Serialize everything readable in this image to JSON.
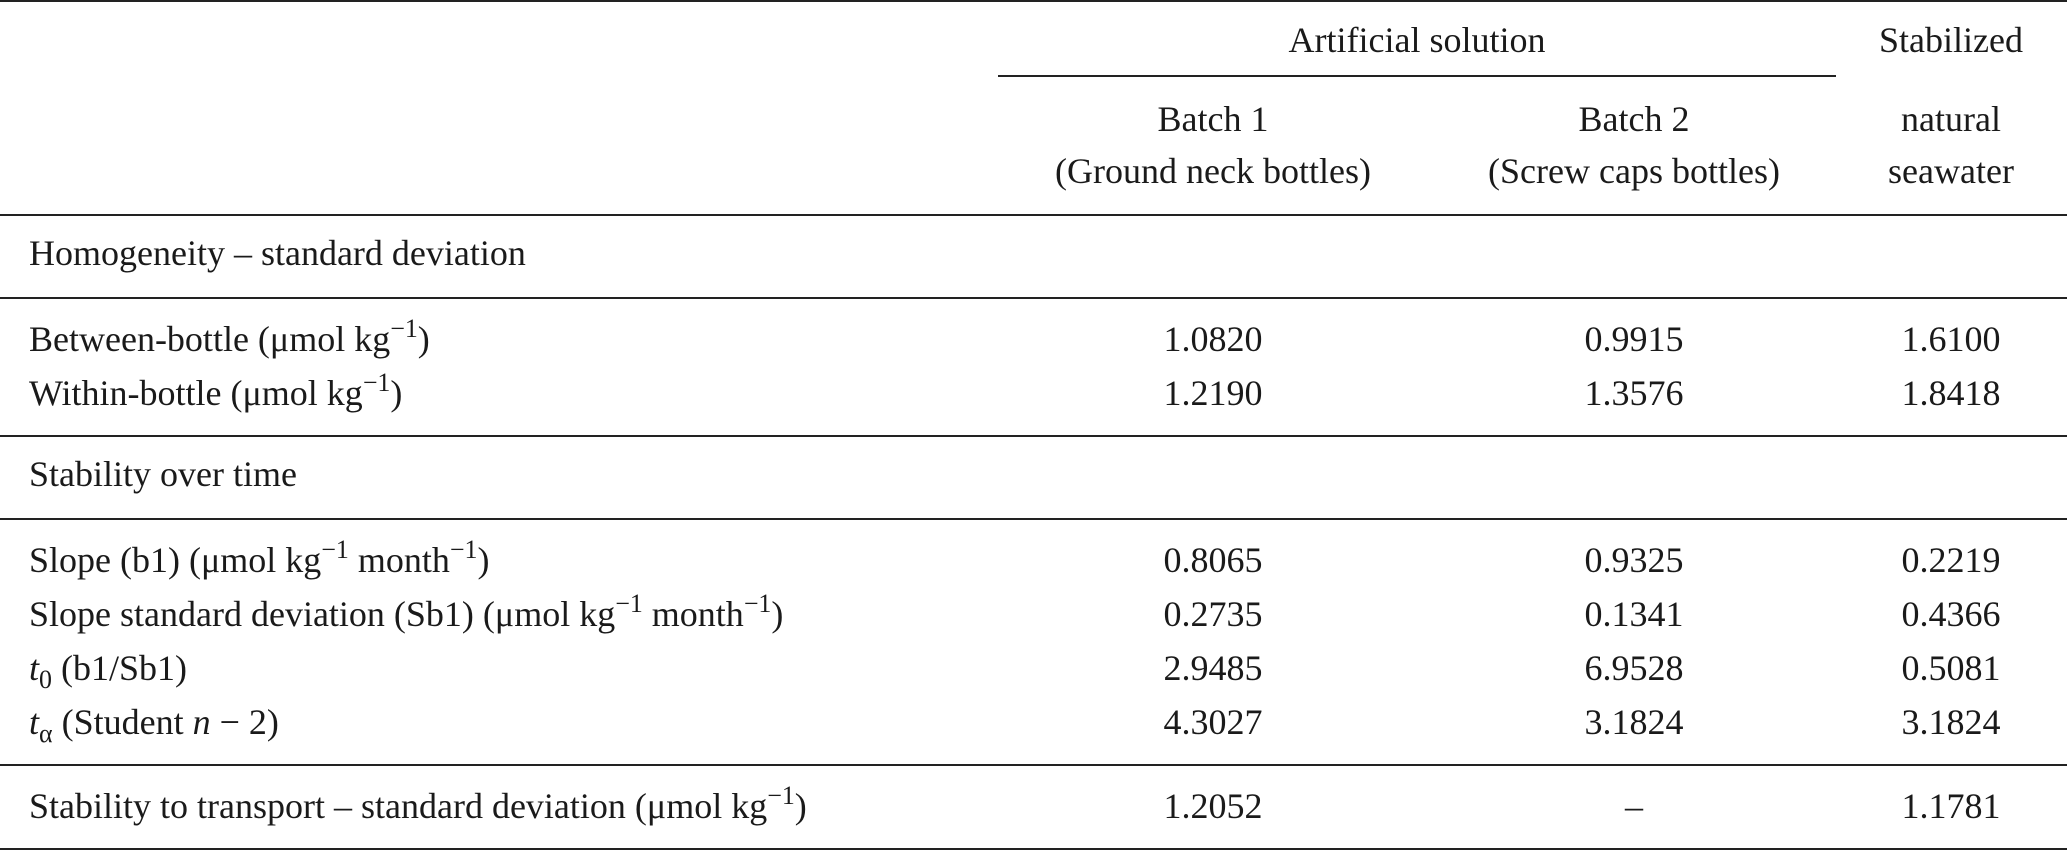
{
  "table": {
    "header": {
      "group": "Artificial solution",
      "columns": [
        [
          "Batch 1",
          "(Ground neck bottles)"
        ],
        [
          "Batch 2",
          "(Screw caps bottles)"
        ],
        [
          "Stabilized",
          "natural",
          "seawater"
        ]
      ]
    },
    "sections": [
      {
        "title": "Homogeneity – standard deviation",
        "rows": [
          {
            "label": [
              "Between-bottle (μmol kg",
              {
                "sup": "−1"
              },
              ")"
            ],
            "values": [
              "1.0820",
              "0.9915",
              "1.6100"
            ]
          },
          {
            "label": [
              "Within-bottle (μmol kg",
              {
                "sup": "−1"
              },
              ")"
            ],
            "values": [
              "1.2190",
              "1.3576",
              "1.8418"
            ]
          }
        ]
      },
      {
        "title": "Stability over time",
        "rows": [
          {
            "label": [
              "Slope (b1) (μmol kg",
              {
                "sup": "−1"
              },
              " month",
              {
                "sup": "−1"
              },
              ")"
            ],
            "values": [
              "0.8065",
              "0.9325",
              "0.2219"
            ]
          },
          {
            "label": [
              "Slope standard deviation (Sb1) (μmol kg",
              {
                "sup": "−1"
              },
              " month",
              {
                "sup": "−1"
              },
              ")"
            ],
            "values": [
              "0.2735",
              "0.1341",
              "0.4366"
            ]
          },
          {
            "label": [
              {
                "i": "t"
              },
              {
                "sub": "0"
              },
              " (b1/Sb1)"
            ],
            "values": [
              "2.9485",
              "6.9528",
              "0.5081"
            ]
          },
          {
            "label": [
              {
                "i": "t"
              },
              {
                "sub": "α"
              },
              " (Student ",
              {
                "i": "n"
              },
              " − 2)"
            ],
            "values": [
              "4.3027",
              "3.1824",
              "3.1824"
            ]
          }
        ]
      },
      {
        "rows": [
          {
            "label": [
              "Stability to transport – standard deviation (μmol kg",
              {
                "sup": "−1"
              },
              ")"
            ],
            "values": [
              "1.2052",
              "–",
              "1.1781"
            ]
          }
        ]
      }
    ]
  }
}
